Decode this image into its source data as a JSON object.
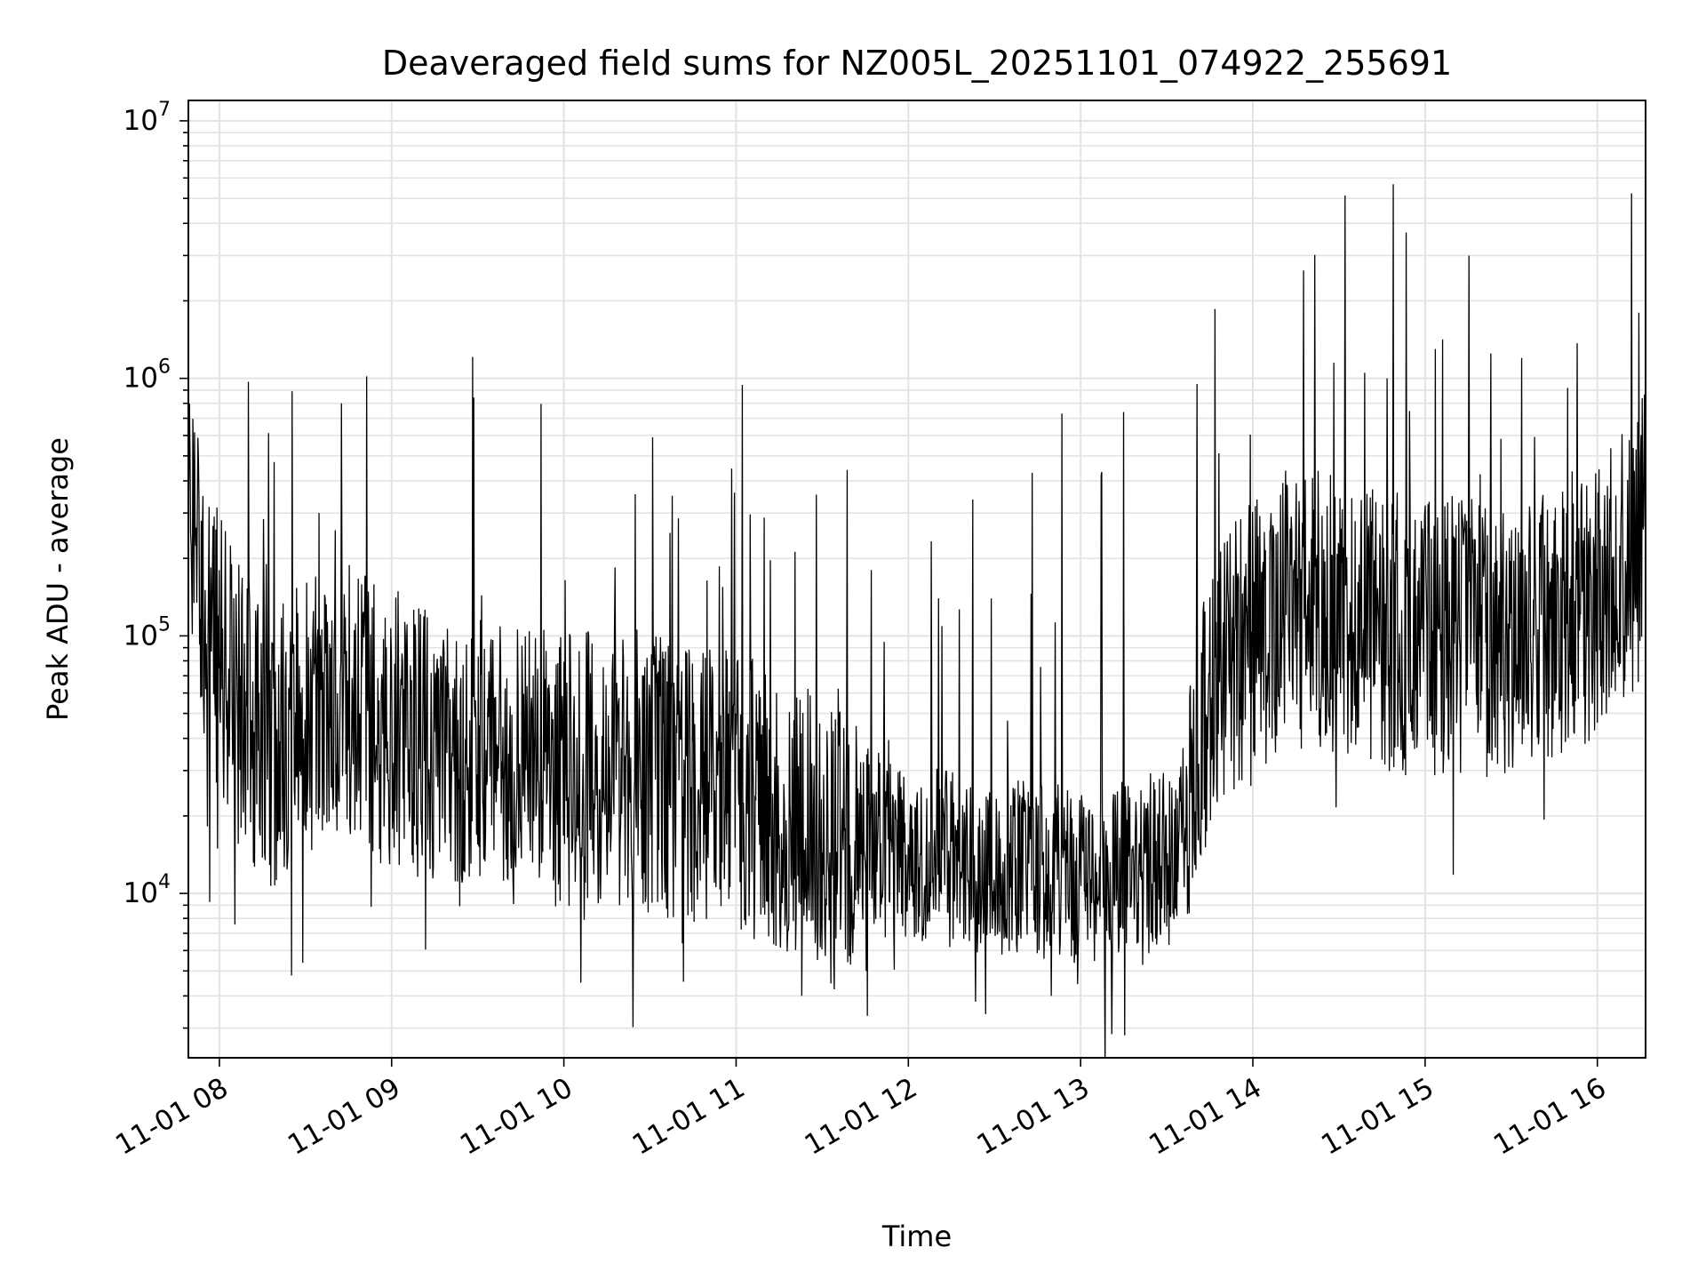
{
  "chart_data": {
    "type": "line",
    "title": "Deaveraged field sums for NZ005L_20251101_074922_255691",
    "xlabel": "Time",
    "ylabel": "Peak ADU - average",
    "yscale": "log",
    "ylim": [
      2300,
      12000000
    ],
    "y_ticks": [
      {
        "value": 10000,
        "base": "10",
        "exp": "4"
      },
      {
        "value": 100000,
        "base": "10",
        "exp": "5"
      },
      {
        "value": 1000000,
        "base": "10",
        "exp": "6"
      },
      {
        "value": 10000000,
        "base": "10",
        "exp": "7"
      }
    ],
    "xlim_hours": [
      7.82,
      16.28
    ],
    "x_ticks": [
      {
        "hour": 8,
        "label": "11-01 08"
      },
      {
        "hour": 9,
        "label": "11-01 09"
      },
      {
        "hour": 10,
        "label": "11-01 10"
      },
      {
        "hour": 11,
        "label": "11-01 11"
      },
      {
        "hour": 12,
        "label": "11-01 12"
      },
      {
        "hour": 13,
        "label": "11-01 13"
      },
      {
        "hour": 14,
        "label": "11-01 14"
      },
      {
        "hour": 15,
        "label": "11-01 15"
      },
      {
        "hour": 16,
        "label": "11-01 16"
      }
    ],
    "series": [
      {
        "name": "Peak ADU - average",
        "color": "#000000",
        "trend_hours": [
          7.82,
          7.87,
          7.95,
          8.1,
          8.3,
          8.5,
          8.7,
          8.9,
          9.2,
          9.6,
          10.0,
          10.4,
          10.8,
          11.2,
          11.6,
          12.0,
          12.4,
          12.8,
          13.2,
          13.55,
          13.7,
          13.9,
          14.2,
          14.6,
          15.0,
          15.4,
          15.8,
          16.0,
          16.28
        ],
        "trend_values": [
          400000,
          200000,
          110000,
          55000,
          35000,
          50000,
          60000,
          45000,
          40000,
          32000,
          30000,
          30000,
          27000,
          22000,
          18000,
          15000,
          13000,
          12000,
          12000,
          14000,
          50000,
          80000,
          130000,
          120000,
          100000,
          100000,
          120000,
          140000,
          250000
        ],
        "peaks": [
          {
            "hour": 8.71,
            "value": 800000
          },
          {
            "hour": 12.89,
            "value": 730000
          },
          {
            "hour": 13.25,
            "value": 740000
          },
          {
            "hour": 14.47,
            "value": 1150000
          },
          {
            "hour": 14.78,
            "value": 1000000
          },
          {
            "hour": 15.06,
            "value": 1300000
          },
          {
            "hour": 15.38,
            "value": 1250000
          },
          {
            "hour": 15.56,
            "value": 1200000
          },
          {
            "hour": 16.24,
            "value": 1800000
          },
          {
            "hour": 12.72,
            "value": 430000
          },
          {
            "hour": 13.12,
            "value": 420000
          },
          {
            "hour": 10.63,
            "value": 350000
          },
          {
            "hour": 10.99,
            "value": 360000
          },
          {
            "hour": 8.58,
            "value": 300000
          }
        ],
        "dips": [
          {
            "hour": 8.42,
            "value": 4800
          },
          {
            "hour": 12.45,
            "value": 3400
          },
          {
            "hour": 12.83,
            "value": 4000
          },
          {
            "hour": 12.39,
            "value": 3800
          },
          {
            "hour": 10.1,
            "value": 4500
          },
          {
            "hour": 11.38,
            "value": 4000
          }
        ]
      }
    ]
  }
}
